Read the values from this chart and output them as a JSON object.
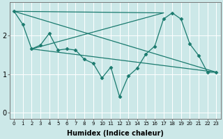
{
  "xlabel": "Humidex (Indice chaleur)",
  "bg_color": "#cce8e8",
  "grid_color": "#ffffff",
  "line_color": "#1a7a6e",
  "x_ticks": [
    0,
    1,
    2,
    3,
    4,
    5,
    6,
    7,
    8,
    9,
    10,
    11,
    12,
    13,
    14,
    15,
    16,
    17,
    18,
    19,
    20,
    21,
    22,
    23
  ],
  "y_ticks": [
    0,
    1,
    2
  ],
  "ylim": [
    -0.15,
    2.85
  ],
  "xlim": [
    -0.5,
    23.5
  ],
  "series": [
    {
      "x": [
        0,
        1,
        2,
        3,
        4,
        5,
        6,
        7,
        8,
        9,
        10,
        11,
        12,
        13,
        14,
        15,
        16,
        17,
        18,
        19,
        20,
        21,
        22,
        23
      ],
      "y": [
        2.62,
        2.28,
        1.65,
        1.75,
        2.05,
        1.62,
        1.65,
        1.62,
        1.38,
        1.28,
        0.9,
        1.18,
        0.42,
        0.95,
        1.15,
        1.52,
        1.72,
        2.42,
        2.58,
        2.42,
        1.78,
        1.48,
        1.05,
        1.05
      ],
      "has_markers": true
    },
    {
      "x": [
        0,
        17
      ],
      "y": [
        2.62,
        2.58
      ],
      "has_markers": false
    },
    {
      "x": [
        0,
        23
      ],
      "y": [
        2.62,
        1.05
      ],
      "has_markers": false
    },
    {
      "x": [
        2,
        17
      ],
      "y": [
        1.65,
        2.58
      ],
      "has_markers": false
    },
    {
      "x": [
        2,
        23
      ],
      "y": [
        1.65,
        1.05
      ],
      "has_markers": false
    }
  ]
}
